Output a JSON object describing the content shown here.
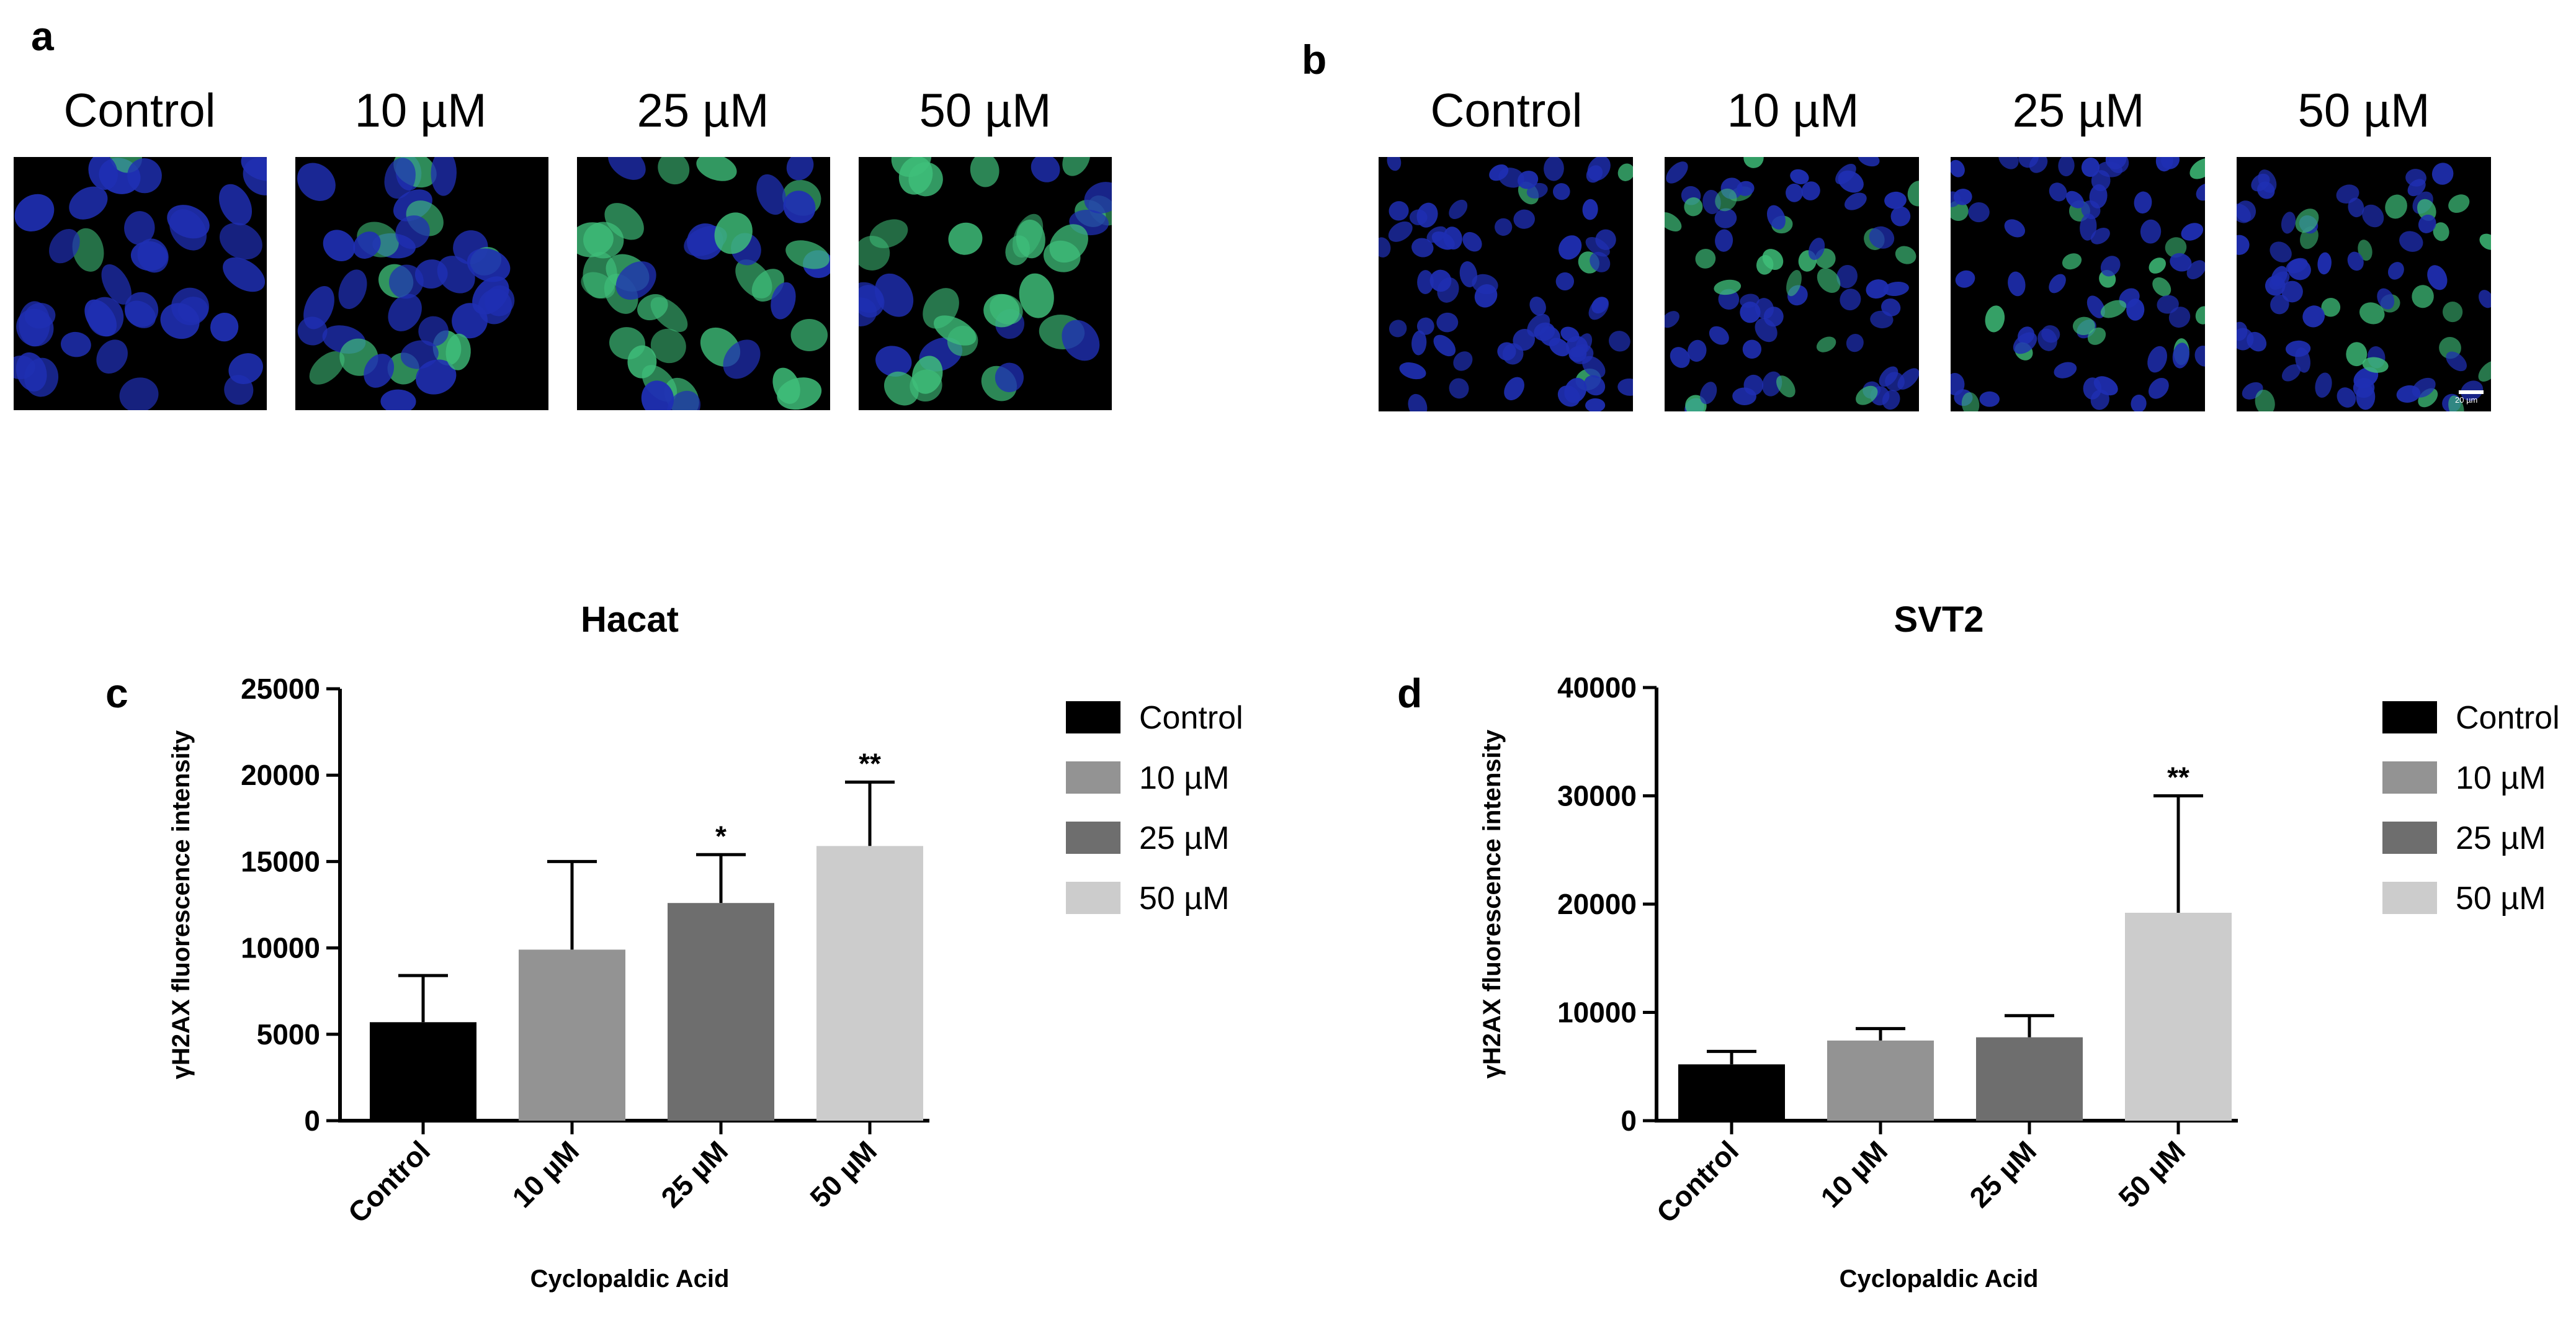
{
  "panels": {
    "a": {
      "letter": "a",
      "labels": [
        "Control",
        "10 µM",
        "25 µM",
        "50 µM"
      ],
      "green_level": [
        0.05,
        0.35,
        0.6,
        0.75
      ]
    },
    "b": {
      "letter": "b",
      "labels": [
        "Control",
        "10 µM",
        "25 µM",
        "50 µM"
      ],
      "green_level": [
        0.05,
        0.3,
        0.3,
        0.25
      ],
      "scale_bar_text": "20 µm"
    }
  },
  "colors": {
    "Control": "#000000",
    "10 µM": "#939393",
    "25 µM": "#6e6e6e",
    "50 µM": "#cccccc",
    "nuclei": "#1f2fb3",
    "gH2AX": "#3fbf7a"
  },
  "chart_data": [
    {
      "letter": "c",
      "type": "bar",
      "title": "Hacat",
      "xlabel": "Cyclopaldic Acid",
      "ylabel": "γH2AX fluorescence intensity",
      "categories": [
        "Control",
        "10 µM",
        "25 µM",
        "50 µM"
      ],
      "values": [
        5700,
        9900,
        12600,
        15900
      ],
      "error_upper": [
        8400,
        15000,
        15400,
        19600
      ],
      "significance": [
        "",
        "",
        "*",
        "**"
      ],
      "ylim": [
        0,
        25000
      ],
      "yticks": [
        "0",
        "5000",
        "10000",
        "15000",
        "20000",
        "25000"
      ],
      "legend": [
        "Control",
        "10 µM",
        "25 µM",
        "50 µM"
      ],
      "legend_position": "right"
    },
    {
      "letter": "d",
      "type": "bar",
      "title": "SVT2",
      "xlabel": "Cyclopaldic Acid",
      "ylabel": "γH2AX fluorescence intensity",
      "categories": [
        "Control",
        "10 µM",
        "25 µM",
        "50 µM"
      ],
      "values": [
        5200,
        7400,
        7700,
        19200
      ],
      "error_upper": [
        6400,
        8500,
        9700,
        30000
      ],
      "significance": [
        "",
        "",
        "",
        "**"
      ],
      "ylim": [
        0,
        40000
      ],
      "yticks": [
        "0",
        "10000",
        "20000",
        "30000",
        "40000"
      ],
      "legend": [
        "Control",
        "10 µM",
        "25 µM",
        "50 µM"
      ],
      "legend_position": "right"
    }
  ]
}
